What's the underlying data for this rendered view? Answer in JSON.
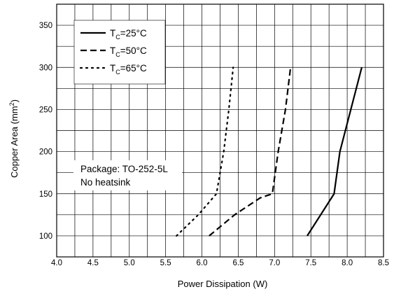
{
  "chart_data": {
    "type": "line",
    "xlabel": "Power Dissipation (W)",
    "ylabel_main": "Copper Area (mm",
    "ylabel_sup": "2",
    "ylabel_end": ")",
    "xlim": [
      4.0,
      8.5
    ],
    "ylim": [
      75,
      375
    ],
    "grid": true,
    "x_ticks": [
      "4.0",
      "4.5",
      "5.0",
      "5.5",
      "6.0",
      "6.5",
      "7.0",
      "7.5",
      "8.0",
      "8.5"
    ],
    "y_ticks": [
      "100",
      "150",
      "200",
      "250",
      "300",
      "350"
    ],
    "legend_position": "top-left",
    "annotation": [
      "Package: TO-252-5L",
      "No heatsink"
    ],
    "series": [
      {
        "legend_main": "T",
        "legend_sub": "C",
        "legend_rest": "=25°C",
        "style": "solid",
        "points": [
          [
            7.45,
            100
          ],
          [
            7.82,
            150
          ],
          [
            7.9,
            200
          ],
          [
            8.2,
            300
          ]
        ]
      },
      {
        "legend_main": "T",
        "legend_sub": "C",
        "legend_rest": "=50°C",
        "style": "dashed",
        "points": [
          [
            6.1,
            100
          ],
          [
            6.45,
            125
          ],
          [
            6.8,
            145
          ],
          [
            6.97,
            150
          ],
          [
            7.05,
            200
          ],
          [
            7.15,
            250
          ],
          [
            7.22,
            300
          ]
        ]
      },
      {
        "legend_main": "T",
        "legend_sub": "C",
        "legend_rest": "=65°C",
        "style": "dotted",
        "points": [
          [
            5.65,
            100
          ],
          [
            5.95,
            125
          ],
          [
            6.2,
            150
          ],
          [
            6.3,
            200
          ],
          [
            6.37,
            250
          ],
          [
            6.43,
            300
          ]
        ]
      }
    ]
  }
}
